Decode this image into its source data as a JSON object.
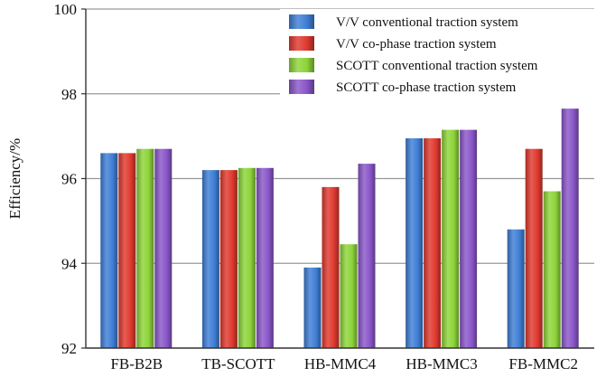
{
  "chart_data": {
    "type": "bar",
    "ylabel": "Efficiency/%",
    "xlabel": "",
    "ylim": [
      92,
      100
    ],
    "yticks": [
      92,
      94,
      96,
      98,
      100
    ],
    "grid": "horizontal",
    "legend_position": "top-right",
    "categories": [
      "FB-B2B",
      "TB-SCOTT",
      "HB-MMC4",
      "HB-MMC3",
      "FB-MMC2"
    ],
    "series": [
      {
        "name": "V/V conventional traction system",
        "color": "#3f7fd6",
        "values": [
          96.6,
          96.2,
          93.9,
          96.95,
          94.8
        ]
      },
      {
        "name": "V/V co-phase traction system",
        "color": "#e03a2f",
        "values": [
          96.6,
          96.2,
          95.8,
          96.95,
          96.7
        ]
      },
      {
        "name": "SCOTT conventional traction system",
        "color": "#8ed43a",
        "values": [
          96.7,
          96.25,
          94.45,
          97.15,
          95.7
        ]
      },
      {
        "name": "SCOTT co-phase traction system",
        "color": "#8a57c9",
        "values": [
          96.7,
          96.25,
          96.35,
          97.15,
          97.65
        ]
      }
    ]
  }
}
